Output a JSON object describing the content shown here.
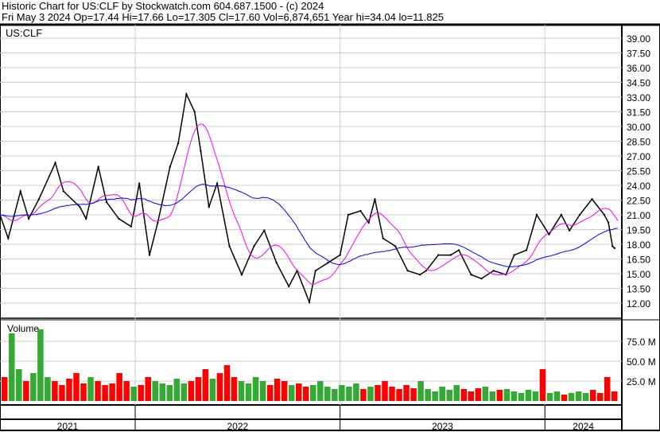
{
  "header": {
    "title": "Historic Chart for US:CLF by Stockwatch.com 604.687.1500 - (c) 2024",
    "quote": "Fri May  3 2024  Op=17.44  Hi=17.66  Lo=17.305  Cl=17.60  Vol=6,874,651  Year hi=34.04  lo=11.825"
  },
  "chart_data": [
    {
      "type": "line",
      "symbol": "US:CLF",
      "ylim": [
        11,
        40
      ],
      "xlim": [
        2021.34,
        2024.36
      ],
      "yticks": [
        "39.00",
        "37.50",
        "36.00",
        "34.50",
        "33.00",
        "31.50",
        "30.00",
        "28.50",
        "27.00",
        "25.50",
        "24.00",
        "22.50",
        "21.00",
        "19.50",
        "18.00",
        "16.50",
        "15.00",
        "13.50",
        "12.00"
      ],
      "xticks": [
        "2021",
        "2022",
        "2023",
        "2024"
      ],
      "grid": true,
      "colors": {
        "price": "#000000",
        "ma_short": "#ff00ff",
        "ma_long": "#0000ff"
      },
      "x": [
        2021.34,
        2021.38,
        2021.44,
        2021.48,
        2021.53,
        2021.61,
        2021.65,
        2021.73,
        2021.76,
        2021.82,
        2021.86,
        2021.92,
        2021.98,
        2022.02,
        2022.07,
        2022.11,
        2022.17,
        2022.21,
        2022.25,
        2022.29,
        2022.32,
        2022.36,
        2022.4,
        2022.46,
        2022.52,
        2022.58,
        2022.63,
        2022.69,
        2022.75,
        2022.79,
        2022.85,
        2022.88,
        2022.94,
        2023.0,
        2023.04,
        2023.1,
        2023.14,
        2023.17,
        2023.21,
        2023.27,
        2023.33,
        2023.39,
        2023.42,
        2023.48,
        2023.54,
        2023.58,
        2023.64,
        2023.69,
        2023.75,
        2023.81,
        2023.85,
        2023.91,
        2023.96,
        2024.02,
        2024.08,
        2024.12,
        2024.17,
        2024.23,
        2024.29,
        2024.31,
        2024.33,
        2024.34
      ],
      "price": [
        21,
        18.6,
        23.4,
        20.6,
        22.6,
        26.3,
        23.4,
        21.8,
        20.6,
        25.9,
        22.3,
        20.6,
        19.8,
        24.2,
        16.9,
        20.2,
        25.9,
        28.3,
        33.3,
        31.5,
        27.5,
        21.8,
        24.2,
        17.8,
        14.9,
        17.8,
        19.4,
        16.1,
        13.7,
        15.3,
        12.1,
        15.3,
        16.1,
        16.9,
        21,
        21.4,
        20.2,
        22.6,
        18.6,
        17.8,
        15.3,
        14.9,
        15.3,
        16.9,
        16.9,
        17.4,
        14.9,
        14.5,
        15.3,
        14.9,
        16.9,
        17.4,
        21,
        19,
        21,
        19.4,
        21,
        22.6,
        21,
        20.2,
        17.8,
        17.6
      ]
    },
    {
      "type": "bar",
      "title": "Volume",
      "yticks": [
        "75.0 M",
        "50.0 M",
        "25.0 M"
      ],
      "ylim": [
        0,
        100
      ],
      "colors": {
        "up": "#33aa33",
        "down": "#ff0000"
      },
      "volume_m": [
        30,
        85,
        40,
        25,
        35,
        90,
        30,
        25,
        20,
        28,
        35,
        22,
        30,
        25,
        20,
        22,
        35,
        25,
        18,
        20,
        30,
        25,
        22,
        20,
        28,
        22,
        25,
        30,
        40,
        28,
        35,
        45,
        30,
        25,
        22,
        30,
        25,
        20,
        28,
        25,
        20,
        22,
        18,
        20,
        25,
        18,
        15,
        20,
        18,
        22,
        15,
        18,
        20,
        25,
        18,
        15,
        20,
        16,
        25,
        15,
        12,
        18,
        14,
        20,
        15,
        12,
        16,
        18,
        12,
        14,
        15,
        12,
        10,
        14,
        12,
        40,
        10,
        12,
        8,
        10,
        12,
        10,
        14,
        10,
        30,
        12
      ]
    }
  ]
}
